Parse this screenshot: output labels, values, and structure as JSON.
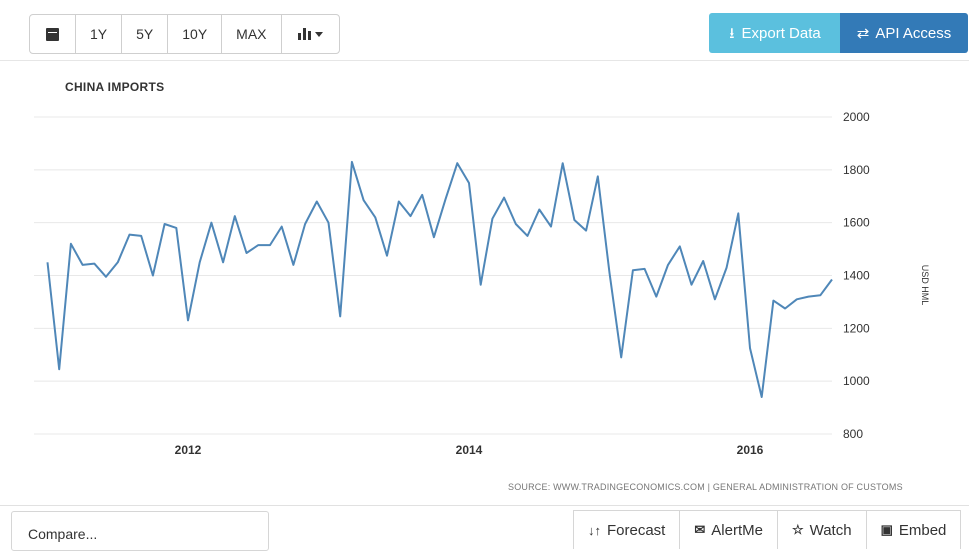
{
  "toolbar": {
    "calendar_icon": "calendar-icon",
    "ranges": [
      "1Y",
      "5Y",
      "10Y",
      "MAX"
    ],
    "chart_type_icon": "bar-chart-icon"
  },
  "actions": {
    "export_label": "Export Data",
    "api_label": "API Access"
  },
  "colors": {
    "line": "#4f87b8",
    "export_bg": "#5bc0de",
    "api_bg": "#337ab7"
  },
  "chart_data": {
    "type": "line",
    "title": "CHINA IMPORTS",
    "ylabel": "USD HML",
    "ylim": [
      800,
      2000
    ],
    "yticks": [
      800,
      1000,
      1200,
      1400,
      1600,
      1800,
      2000
    ],
    "xticks": [
      "2012",
      "2014",
      "2016"
    ],
    "grid": true,
    "x": [
      "2011-01",
      "2011-02",
      "2011-03",
      "2011-04",
      "2011-05",
      "2011-06",
      "2011-07",
      "2011-08",
      "2011-09",
      "2011-10",
      "2011-11",
      "2011-12",
      "2012-01",
      "2012-02",
      "2012-03",
      "2012-04",
      "2012-05",
      "2012-06",
      "2012-07",
      "2012-08",
      "2012-09",
      "2012-10",
      "2012-11",
      "2012-12",
      "2013-01",
      "2013-02",
      "2013-03",
      "2013-04",
      "2013-05",
      "2013-06",
      "2013-07",
      "2013-08",
      "2013-09",
      "2013-10",
      "2013-11",
      "2013-12",
      "2014-01",
      "2014-02",
      "2014-03",
      "2014-04",
      "2014-05",
      "2014-06",
      "2014-07",
      "2014-08",
      "2014-09",
      "2014-10",
      "2014-11",
      "2014-12",
      "2015-01",
      "2015-02",
      "2015-03",
      "2015-04",
      "2015-05",
      "2015-06",
      "2015-07",
      "2015-08",
      "2015-09",
      "2015-10",
      "2015-11",
      "2015-12",
      "2016-01",
      "2016-02",
      "2016-03",
      "2016-04",
      "2016-05",
      "2016-06",
      "2016-07",
      "2016-08"
    ],
    "values": [
      1450,
      1045,
      1520,
      1440,
      1445,
      1395,
      1450,
      1555,
      1550,
      1400,
      1595,
      1580,
      1230,
      1450,
      1600,
      1450,
      1625,
      1485,
      1515,
      1515,
      1585,
      1440,
      1595,
      1680,
      1600,
      1245,
      1830,
      1685,
      1620,
      1475,
      1680,
      1625,
      1705,
      1545,
      1690,
      1825,
      1750,
      1365,
      1615,
      1695,
      1595,
      1550,
      1650,
      1585,
      1825,
      1610,
      1570,
      1775,
      1410,
      1090,
      1420,
      1425,
      1320,
      1440,
      1510,
      1365,
      1455,
      1310,
      1430,
      1635,
      1125,
      940,
      1305,
      1275,
      1310,
      1320,
      1325,
      1385
    ]
  },
  "source_text": "SOURCE: WWW.TRADINGECONOMICS.COM | GENERAL ADMINISTRATION OF CUSTOMS",
  "footer": {
    "compare_placeholder": "Compare...",
    "tabs": [
      {
        "label": "Forecast",
        "icon": "sort-icon"
      },
      {
        "label": "AlertMe",
        "icon": "envelope-icon"
      },
      {
        "label": "Watch",
        "icon": "star-icon"
      },
      {
        "label": "Embed",
        "icon": "image-icon"
      }
    ]
  }
}
